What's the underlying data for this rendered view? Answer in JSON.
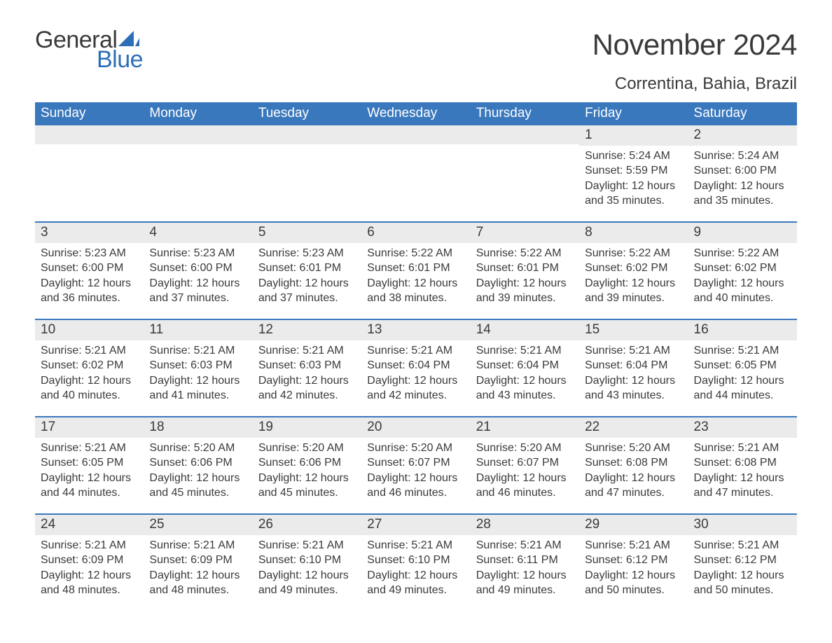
{
  "logo": {
    "text_general": "General",
    "text_blue": "Blue",
    "sail_color": "#2d6fb7"
  },
  "header": {
    "month_title": "November 2024",
    "location": "Correntina, Bahia, Brazil"
  },
  "colors": {
    "header_bg": "#3a78bd",
    "header_text": "#ffffff",
    "daynum_bg": "#ebebeb",
    "border": "#3a78bd",
    "text": "#3a3a3a",
    "page_bg": "#ffffff"
  },
  "weekdays": [
    "Sunday",
    "Monday",
    "Tuesday",
    "Wednesday",
    "Thursday",
    "Friday",
    "Saturday"
  ],
  "weeks": [
    [
      null,
      null,
      null,
      null,
      null,
      {
        "n": "1",
        "sunrise": "Sunrise: 5:24 AM",
        "sunset": "Sunset: 5:59 PM",
        "daylight": "Daylight: 12 hours and 35 minutes."
      },
      {
        "n": "2",
        "sunrise": "Sunrise: 5:24 AM",
        "sunset": "Sunset: 6:00 PM",
        "daylight": "Daylight: 12 hours and 35 minutes."
      }
    ],
    [
      {
        "n": "3",
        "sunrise": "Sunrise: 5:23 AM",
        "sunset": "Sunset: 6:00 PM",
        "daylight": "Daylight: 12 hours and 36 minutes."
      },
      {
        "n": "4",
        "sunrise": "Sunrise: 5:23 AM",
        "sunset": "Sunset: 6:00 PM",
        "daylight": "Daylight: 12 hours and 37 minutes."
      },
      {
        "n": "5",
        "sunrise": "Sunrise: 5:23 AM",
        "sunset": "Sunset: 6:01 PM",
        "daylight": "Daylight: 12 hours and 37 minutes."
      },
      {
        "n": "6",
        "sunrise": "Sunrise: 5:22 AM",
        "sunset": "Sunset: 6:01 PM",
        "daylight": "Daylight: 12 hours and 38 minutes."
      },
      {
        "n": "7",
        "sunrise": "Sunrise: 5:22 AM",
        "sunset": "Sunset: 6:01 PM",
        "daylight": "Daylight: 12 hours and 39 minutes."
      },
      {
        "n": "8",
        "sunrise": "Sunrise: 5:22 AM",
        "sunset": "Sunset: 6:02 PM",
        "daylight": "Daylight: 12 hours and 39 minutes."
      },
      {
        "n": "9",
        "sunrise": "Sunrise: 5:22 AM",
        "sunset": "Sunset: 6:02 PM",
        "daylight": "Daylight: 12 hours and 40 minutes."
      }
    ],
    [
      {
        "n": "10",
        "sunrise": "Sunrise: 5:21 AM",
        "sunset": "Sunset: 6:02 PM",
        "daylight": "Daylight: 12 hours and 40 minutes."
      },
      {
        "n": "11",
        "sunrise": "Sunrise: 5:21 AM",
        "sunset": "Sunset: 6:03 PM",
        "daylight": "Daylight: 12 hours and 41 minutes."
      },
      {
        "n": "12",
        "sunrise": "Sunrise: 5:21 AM",
        "sunset": "Sunset: 6:03 PM",
        "daylight": "Daylight: 12 hours and 42 minutes."
      },
      {
        "n": "13",
        "sunrise": "Sunrise: 5:21 AM",
        "sunset": "Sunset: 6:04 PM",
        "daylight": "Daylight: 12 hours and 42 minutes."
      },
      {
        "n": "14",
        "sunrise": "Sunrise: 5:21 AM",
        "sunset": "Sunset: 6:04 PM",
        "daylight": "Daylight: 12 hours and 43 minutes."
      },
      {
        "n": "15",
        "sunrise": "Sunrise: 5:21 AM",
        "sunset": "Sunset: 6:04 PM",
        "daylight": "Daylight: 12 hours and 43 minutes."
      },
      {
        "n": "16",
        "sunrise": "Sunrise: 5:21 AM",
        "sunset": "Sunset: 6:05 PM",
        "daylight": "Daylight: 12 hours and 44 minutes."
      }
    ],
    [
      {
        "n": "17",
        "sunrise": "Sunrise: 5:21 AM",
        "sunset": "Sunset: 6:05 PM",
        "daylight": "Daylight: 12 hours and 44 minutes."
      },
      {
        "n": "18",
        "sunrise": "Sunrise: 5:20 AM",
        "sunset": "Sunset: 6:06 PM",
        "daylight": "Daylight: 12 hours and 45 minutes."
      },
      {
        "n": "19",
        "sunrise": "Sunrise: 5:20 AM",
        "sunset": "Sunset: 6:06 PM",
        "daylight": "Daylight: 12 hours and 45 minutes."
      },
      {
        "n": "20",
        "sunrise": "Sunrise: 5:20 AM",
        "sunset": "Sunset: 6:07 PM",
        "daylight": "Daylight: 12 hours and 46 minutes."
      },
      {
        "n": "21",
        "sunrise": "Sunrise: 5:20 AM",
        "sunset": "Sunset: 6:07 PM",
        "daylight": "Daylight: 12 hours and 46 minutes."
      },
      {
        "n": "22",
        "sunrise": "Sunrise: 5:20 AM",
        "sunset": "Sunset: 6:08 PM",
        "daylight": "Daylight: 12 hours and 47 minutes."
      },
      {
        "n": "23",
        "sunrise": "Sunrise: 5:21 AM",
        "sunset": "Sunset: 6:08 PM",
        "daylight": "Daylight: 12 hours and 47 minutes."
      }
    ],
    [
      {
        "n": "24",
        "sunrise": "Sunrise: 5:21 AM",
        "sunset": "Sunset: 6:09 PM",
        "daylight": "Daylight: 12 hours and 48 minutes."
      },
      {
        "n": "25",
        "sunrise": "Sunrise: 5:21 AM",
        "sunset": "Sunset: 6:09 PM",
        "daylight": "Daylight: 12 hours and 48 minutes."
      },
      {
        "n": "26",
        "sunrise": "Sunrise: 5:21 AM",
        "sunset": "Sunset: 6:10 PM",
        "daylight": "Daylight: 12 hours and 49 minutes."
      },
      {
        "n": "27",
        "sunrise": "Sunrise: 5:21 AM",
        "sunset": "Sunset: 6:10 PM",
        "daylight": "Daylight: 12 hours and 49 minutes."
      },
      {
        "n": "28",
        "sunrise": "Sunrise: 5:21 AM",
        "sunset": "Sunset: 6:11 PM",
        "daylight": "Daylight: 12 hours and 49 minutes."
      },
      {
        "n": "29",
        "sunrise": "Sunrise: 5:21 AM",
        "sunset": "Sunset: 6:12 PM",
        "daylight": "Daylight: 12 hours and 50 minutes."
      },
      {
        "n": "30",
        "sunrise": "Sunrise: 5:21 AM",
        "sunset": "Sunset: 6:12 PM",
        "daylight": "Daylight: 12 hours and 50 minutes."
      }
    ]
  ]
}
